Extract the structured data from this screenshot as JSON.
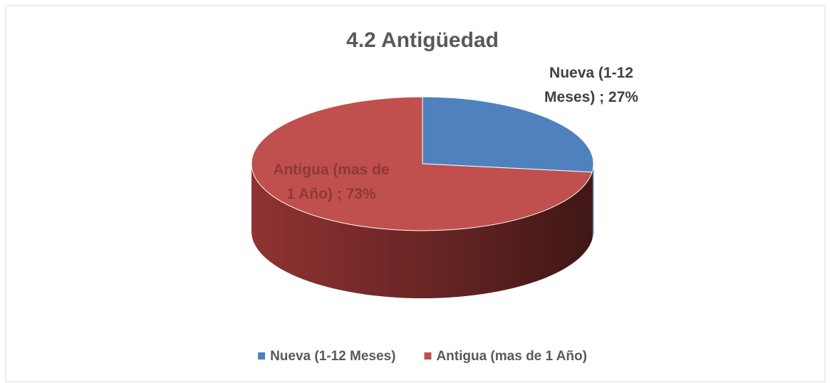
{
  "chart_data": {
    "type": "pie3d",
    "title": "4.2 Antigüedad",
    "categories": [
      "Nueva (1-12 Meses)",
      "Antigua (mas de 1 Año)"
    ],
    "values": [
      27,
      73
    ],
    "value_labels": [
      "Nueva (1-12 Meses) ; 27%",
      "Antigua (mas de 1 Año) ; 73%"
    ],
    "colors": [
      "#4f81bd",
      "#c0504d"
    ],
    "legend": "bottom"
  }
}
